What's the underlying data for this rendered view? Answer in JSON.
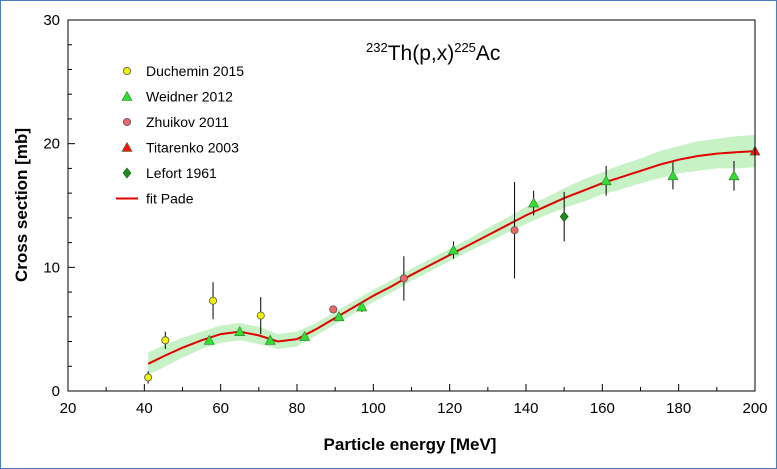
{
  "chart_data": {
    "type": "scatter",
    "title": {
      "mass_target": "232",
      "reaction": "Th(p,x)",
      "mass_product": "225",
      "product": "Ac"
    },
    "xlabel": "Particle energy [MeV]",
    "ylabel": "Cross section [mb]",
    "xlim": [
      20,
      200
    ],
    "ylim": [
      0,
      30
    ],
    "xticks": [
      "20",
      "40",
      "60",
      "80",
      "100",
      "120",
      "140",
      "160",
      "180",
      "200"
    ],
    "yticks": [
      "0",
      "10",
      "20",
      "30"
    ],
    "legend_position": "top-left",
    "series": [
      {
        "name": "Duchemin 2015",
        "marker": "circle",
        "color": "#f2f200",
        "x": [
          41,
          45.5,
          58,
          70.5
        ],
        "y": [
          1.1,
          4.1,
          7.3,
          6.1
        ],
        "err": [
          0.5,
          0.7,
          1.5,
          1.5
        ]
      },
      {
        "name": "Weidner 2012",
        "marker": "triangle",
        "color": "#33dd33",
        "x": [
          57,
          65,
          73,
          82,
          91,
          97,
          121,
          142,
          161,
          178.5,
          194.5
        ],
        "y": [
          4.1,
          4.8,
          4.1,
          4.4,
          6.0,
          6.8,
          11.4,
          15.2,
          17.0,
          17.4,
          17.4
        ],
        "err": [
          0.2,
          0.2,
          0.2,
          0.2,
          0.3,
          0.4,
          0.7,
          1.0,
          1.2,
          1.1,
          1.2
        ]
      },
      {
        "name": "Zhuikov 2011",
        "marker": "circle",
        "color": "#ee6666",
        "x": [
          89.5,
          108,
          137
        ],
        "y": [
          6.6,
          9.1,
          13.0
        ],
        "err": [
          0.3,
          1.8,
          3.9
        ]
      },
      {
        "name": "Titarenko 2003",
        "marker": "triangle",
        "color": "#ff1010",
        "x": [
          200
        ],
        "y": [
          19.4
        ],
        "err": [
          0.8
        ]
      },
      {
        "name": "Lefort 1961",
        "marker": "diamond",
        "color": "#1f8a1f",
        "x": [
          150
        ],
        "y": [
          14.1
        ],
        "err": [
          2.0
        ]
      }
    ],
    "fit": {
      "name": "fit Pade",
      "color": "#e00000",
      "x": [
        41,
        45,
        50,
        55,
        60,
        65,
        70,
        75,
        80,
        85,
        90,
        95,
        100,
        105,
        110,
        115,
        120,
        125,
        130,
        135,
        140,
        145,
        150,
        155,
        160,
        165,
        170,
        175,
        180,
        185,
        190,
        195,
        200
      ],
      "y": [
        2.2,
        2.8,
        3.5,
        4.1,
        4.6,
        4.8,
        4.5,
        4.0,
        4.2,
        5.0,
        5.9,
        6.8,
        7.7,
        8.5,
        9.4,
        10.2,
        11.0,
        11.8,
        12.6,
        13.4,
        14.2,
        14.9,
        15.6,
        16.2,
        16.8,
        17.3,
        17.8,
        18.3,
        18.7,
        19.0,
        19.2,
        19.3,
        19.4
      ],
      "band_color": "#c6f2c6",
      "band_halfwidth": [
        0.9,
        0.9,
        0.8,
        0.7,
        0.7,
        0.7,
        0.7,
        0.6,
        0.6,
        0.5,
        0.5,
        0.5,
        0.5,
        0.5,
        0.5,
        0.5,
        0.5,
        0.5,
        0.6,
        0.6,
        0.7,
        0.7,
        0.8,
        0.9,
        0.9,
        1.0,
        1.0,
        1.1,
        1.1,
        1.2,
        1.2,
        1.3,
        1.3
      ]
    }
  }
}
